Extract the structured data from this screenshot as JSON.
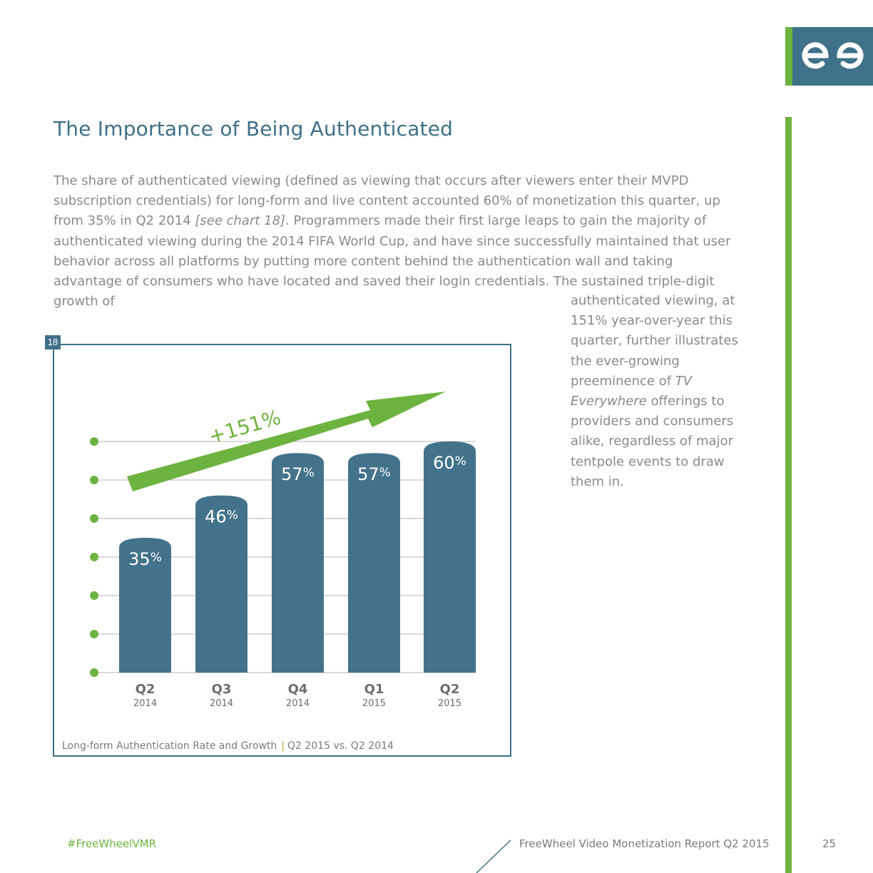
{
  "colors": {
    "accent_green": "#6cb33f",
    "brand_blue": "#3f7189",
    "title_blue": "#3f6f86",
    "body_gray": "#8a8a8a",
    "bar_fill": "#42738a"
  },
  "logo": {
    "icon": "freewheel-logo-icon"
  },
  "heading": "The Importance of Being Authenticated",
  "intro": {
    "part1": "The share of authenticated viewing (defined as viewing that occurs after viewers enter their MVPD subscription credentials) for long-form and live content accounted 60% of monetization this quarter, up from 35% in Q2 2014 ",
    "ref": "[see chart 18]",
    "part2": ". Programmers made their first large leaps to gain the majority of authenticated viewing during the 2014 FIFA World Cup, and have since successfully maintained that user behavior across all platforms by putting more content behind the authentication wall and taking advantage of consumers who have located and saved their login credentials. The sustained triple-digit growth of"
  },
  "side": {
    "part1": "authenticated viewing, at 151% year-over-year this quarter, further illustrates the ever-growing preeminence of ",
    "em": "TV Everywhere",
    "part2": " offerings to providers and consumers alike, regardless of major tentpole events to draw them in."
  },
  "chart": {
    "number": "18",
    "caption_main": "Long-form Authentication Rate and Growth",
    "caption_sep": "|",
    "caption_sub": "Q2 2015 vs. Q2 2014"
  },
  "chart_data": {
    "type": "bar",
    "title": "Long-form Authentication Rate and Growth",
    "subtitle": "Q2 2015 vs. Q2 2014",
    "categories": [
      "Q2",
      "Q3",
      "Q4",
      "Q1",
      "Q2"
    ],
    "category_years": [
      "2014",
      "2014",
      "2014",
      "2015",
      "2015"
    ],
    "values": [
      35,
      46,
      57,
      57,
      60
    ],
    "value_labels": [
      "35",
      "46",
      "57",
      "57",
      "60"
    ],
    "unit": "%",
    "ylim": [
      0,
      60
    ],
    "gridlines": [
      0,
      10,
      20,
      30,
      40,
      50,
      60
    ],
    "annotation": "+151%",
    "xlabel": "",
    "ylabel": ""
  },
  "footer": {
    "hashtag": "#FreeWheelVMR",
    "title": "FreeWheel Video Monetization Report Q2 2015",
    "page": "25"
  }
}
